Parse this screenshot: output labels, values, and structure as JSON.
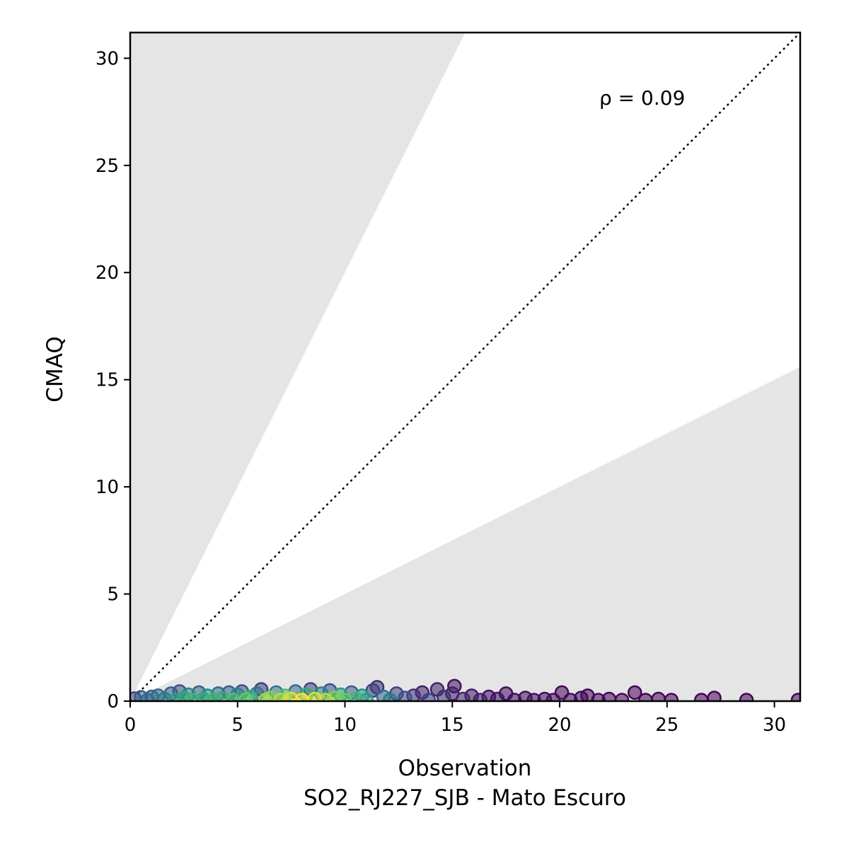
{
  "chart_data": {
    "type": "scatter",
    "xlabel": "Observation",
    "subtitle": "SO2_RJ227_SJB - Mato Escuro",
    "ylabel": "CMAQ",
    "annotation": "ρ = 0.09",
    "xlim": [
      0,
      31.2
    ],
    "ylim": [
      0,
      31.2
    ],
    "xticks": [
      0,
      5,
      10,
      15,
      20,
      25,
      30
    ],
    "yticks": [
      0,
      5,
      10,
      15,
      20,
      25,
      30
    ],
    "shaded_band": {
      "upper_slope": 2,
      "lower_slope": 0.5,
      "color": "#e5e5e5"
    },
    "identity_line": {
      "style": "dotted",
      "color": "#000000"
    },
    "colormap": "viridis",
    "point_alpha": 0.55,
    "points": [
      {
        "x": 0.2,
        "y": 0.12,
        "d": 0.2
      },
      {
        "x": 0.5,
        "y": 0.18,
        "d": 0.3
      },
      {
        "x": 0.8,
        "y": 0.05,
        "d": 0.35
      },
      {
        "x": 1.0,
        "y": 0.2,
        "d": 0.3
      },
      {
        "x": 1.3,
        "y": 0.25,
        "d": 0.35
      },
      {
        "x": 1.6,
        "y": 0.1,
        "d": 0.4
      },
      {
        "x": 1.9,
        "y": 0.35,
        "d": 0.3
      },
      {
        "x": 2.1,
        "y": 0.05,
        "d": 0.55
      },
      {
        "x": 2.3,
        "y": 0.45,
        "d": 0.25
      },
      {
        "x": 2.5,
        "y": 0.15,
        "d": 0.6
      },
      {
        "x": 2.7,
        "y": 0.3,
        "d": 0.45
      },
      {
        "x": 2.9,
        "y": 0.05,
        "d": 0.65
      },
      {
        "x": 3.2,
        "y": 0.4,
        "d": 0.3
      },
      {
        "x": 3.4,
        "y": 0.1,
        "d": 0.6
      },
      {
        "x": 3.6,
        "y": 0.25,
        "d": 0.5
      },
      {
        "x": 3.9,
        "y": 0.05,
        "d": 0.65
      },
      {
        "x": 4.1,
        "y": 0.35,
        "d": 0.35
      },
      {
        "x": 4.3,
        "y": 0.12,
        "d": 0.6
      },
      {
        "x": 4.6,
        "y": 0.4,
        "d": 0.3
      },
      {
        "x": 4.8,
        "y": 0.05,
        "d": 0.7
      },
      {
        "x": 5.0,
        "y": 0.3,
        "d": 0.45
      },
      {
        "x": 5.2,
        "y": 0.45,
        "d": 0.25
      },
      {
        "x": 5.4,
        "y": 0.08,
        "d": 0.75
      },
      {
        "x": 5.6,
        "y": 0.2,
        "d": 0.6
      },
      {
        "x": 5.9,
        "y": 0.35,
        "d": 0.4
      },
      {
        "x": 6.1,
        "y": 0.55,
        "d": 0.2
      },
      {
        "x": 6.3,
        "y": 0.05,
        "d": 0.85
      },
      {
        "x": 6.5,
        "y": 0.15,
        "d": 0.8
      },
      {
        "x": 6.8,
        "y": 0.4,
        "d": 0.4
      },
      {
        "x": 7.0,
        "y": 0.05,
        "d": 0.9
      },
      {
        "x": 7.2,
        "y": 0.25,
        "d": 0.7
      },
      {
        "x": 7.5,
        "y": 0.1,
        "d": 0.95
      },
      {
        "x": 7.7,
        "y": 0.45,
        "d": 0.35
      },
      {
        "x": 8.0,
        "y": 0.05,
        "d": 1.0
      },
      {
        "x": 8.2,
        "y": 0.3,
        "d": 0.6
      },
      {
        "x": 8.4,
        "y": 0.55,
        "d": 0.2
      },
      {
        "x": 8.6,
        "y": 0.1,
        "d": 0.95
      },
      {
        "x": 8.9,
        "y": 0.35,
        "d": 0.45
      },
      {
        "x": 9.1,
        "y": 0.05,
        "d": 0.9
      },
      {
        "x": 9.3,
        "y": 0.5,
        "d": 0.25
      },
      {
        "x": 9.5,
        "y": 0.15,
        "d": 0.8
      },
      {
        "x": 9.8,
        "y": 0.3,
        "d": 0.55
      },
      {
        "x": 10.0,
        "y": 0.05,
        "d": 0.75
      },
      {
        "x": 10.3,
        "y": 0.4,
        "d": 0.3
      },
      {
        "x": 10.5,
        "y": 0.1,
        "d": 0.65
      },
      {
        "x": 10.8,
        "y": 0.25,
        "d": 0.5
      },
      {
        "x": 11.0,
        "y": 0.05,
        "d": 0.55
      },
      {
        "x": 11.3,
        "y": 0.5,
        "d": 0.2
      },
      {
        "x": 11.5,
        "y": 0.65,
        "d": 0.15
      },
      {
        "x": 11.8,
        "y": 0.2,
        "d": 0.35
      },
      {
        "x": 12.1,
        "y": 0.05,
        "d": 0.4
      },
      {
        "x": 12.4,
        "y": 0.35,
        "d": 0.2
      },
      {
        "x": 12.8,
        "y": 0.15,
        "d": 0.25
      },
      {
        "x": 13.2,
        "y": 0.25,
        "d": 0.15
      },
      {
        "x": 13.6,
        "y": 0.4,
        "d": 0.1
      },
      {
        "x": 13.9,
        "y": 0.05,
        "d": 0.2
      },
      {
        "x": 14.3,
        "y": 0.55,
        "d": 0.1
      },
      {
        "x": 14.6,
        "y": 0.2,
        "d": 0.15
      },
      {
        "x": 15.0,
        "y": 0.35,
        "d": 0.1
      },
      {
        "x": 15.1,
        "y": 0.7,
        "d": 0.05
      },
      {
        "x": 15.5,
        "y": 0.1,
        "d": 0.12
      },
      {
        "x": 15.9,
        "y": 0.25,
        "d": 0.08
      },
      {
        "x": 16.3,
        "y": 0.05,
        "d": 0.1
      },
      {
        "x": 16.7,
        "y": 0.2,
        "d": 0.05
      },
      {
        "x": 17.1,
        "y": 0.1,
        "d": 0.06
      },
      {
        "x": 17.5,
        "y": 0.35,
        "d": 0.04
      },
      {
        "x": 17.9,
        "y": 0.05,
        "d": 0.05
      },
      {
        "x": 18.4,
        "y": 0.15,
        "d": 0.04
      },
      {
        "x": 18.8,
        "y": 0.05,
        "d": 0.05
      },
      {
        "x": 19.3,
        "y": 0.1,
        "d": 0.03
      },
      {
        "x": 19.7,
        "y": 0.05,
        "d": 0.04
      },
      {
        "x": 20.1,
        "y": 0.4,
        "d": 0.02
      },
      {
        "x": 20.5,
        "y": 0.05,
        "d": 0.03
      },
      {
        "x": 21.0,
        "y": 0.15,
        "d": 0.03
      },
      {
        "x": 21.3,
        "y": 0.25,
        "d": 0.02
      },
      {
        "x": 21.8,
        "y": 0.05,
        "d": 0.03
      },
      {
        "x": 22.3,
        "y": 0.1,
        "d": 0.02
      },
      {
        "x": 22.9,
        "y": 0.05,
        "d": 0.02
      },
      {
        "x": 23.5,
        "y": 0.4,
        "d": 0.01
      },
      {
        "x": 24.0,
        "y": 0.05,
        "d": 0.02
      },
      {
        "x": 24.6,
        "y": 0.1,
        "d": 0.01
      },
      {
        "x": 25.2,
        "y": 0.05,
        "d": 0.01
      },
      {
        "x": 26.6,
        "y": 0.05,
        "d": 0.01
      },
      {
        "x": 27.2,
        "y": 0.15,
        "d": 0.01
      },
      {
        "x": 28.7,
        "y": 0.05,
        "d": 0.01
      },
      {
        "x": 31.1,
        "y": 0.05,
        "d": 0.01
      }
    ]
  }
}
